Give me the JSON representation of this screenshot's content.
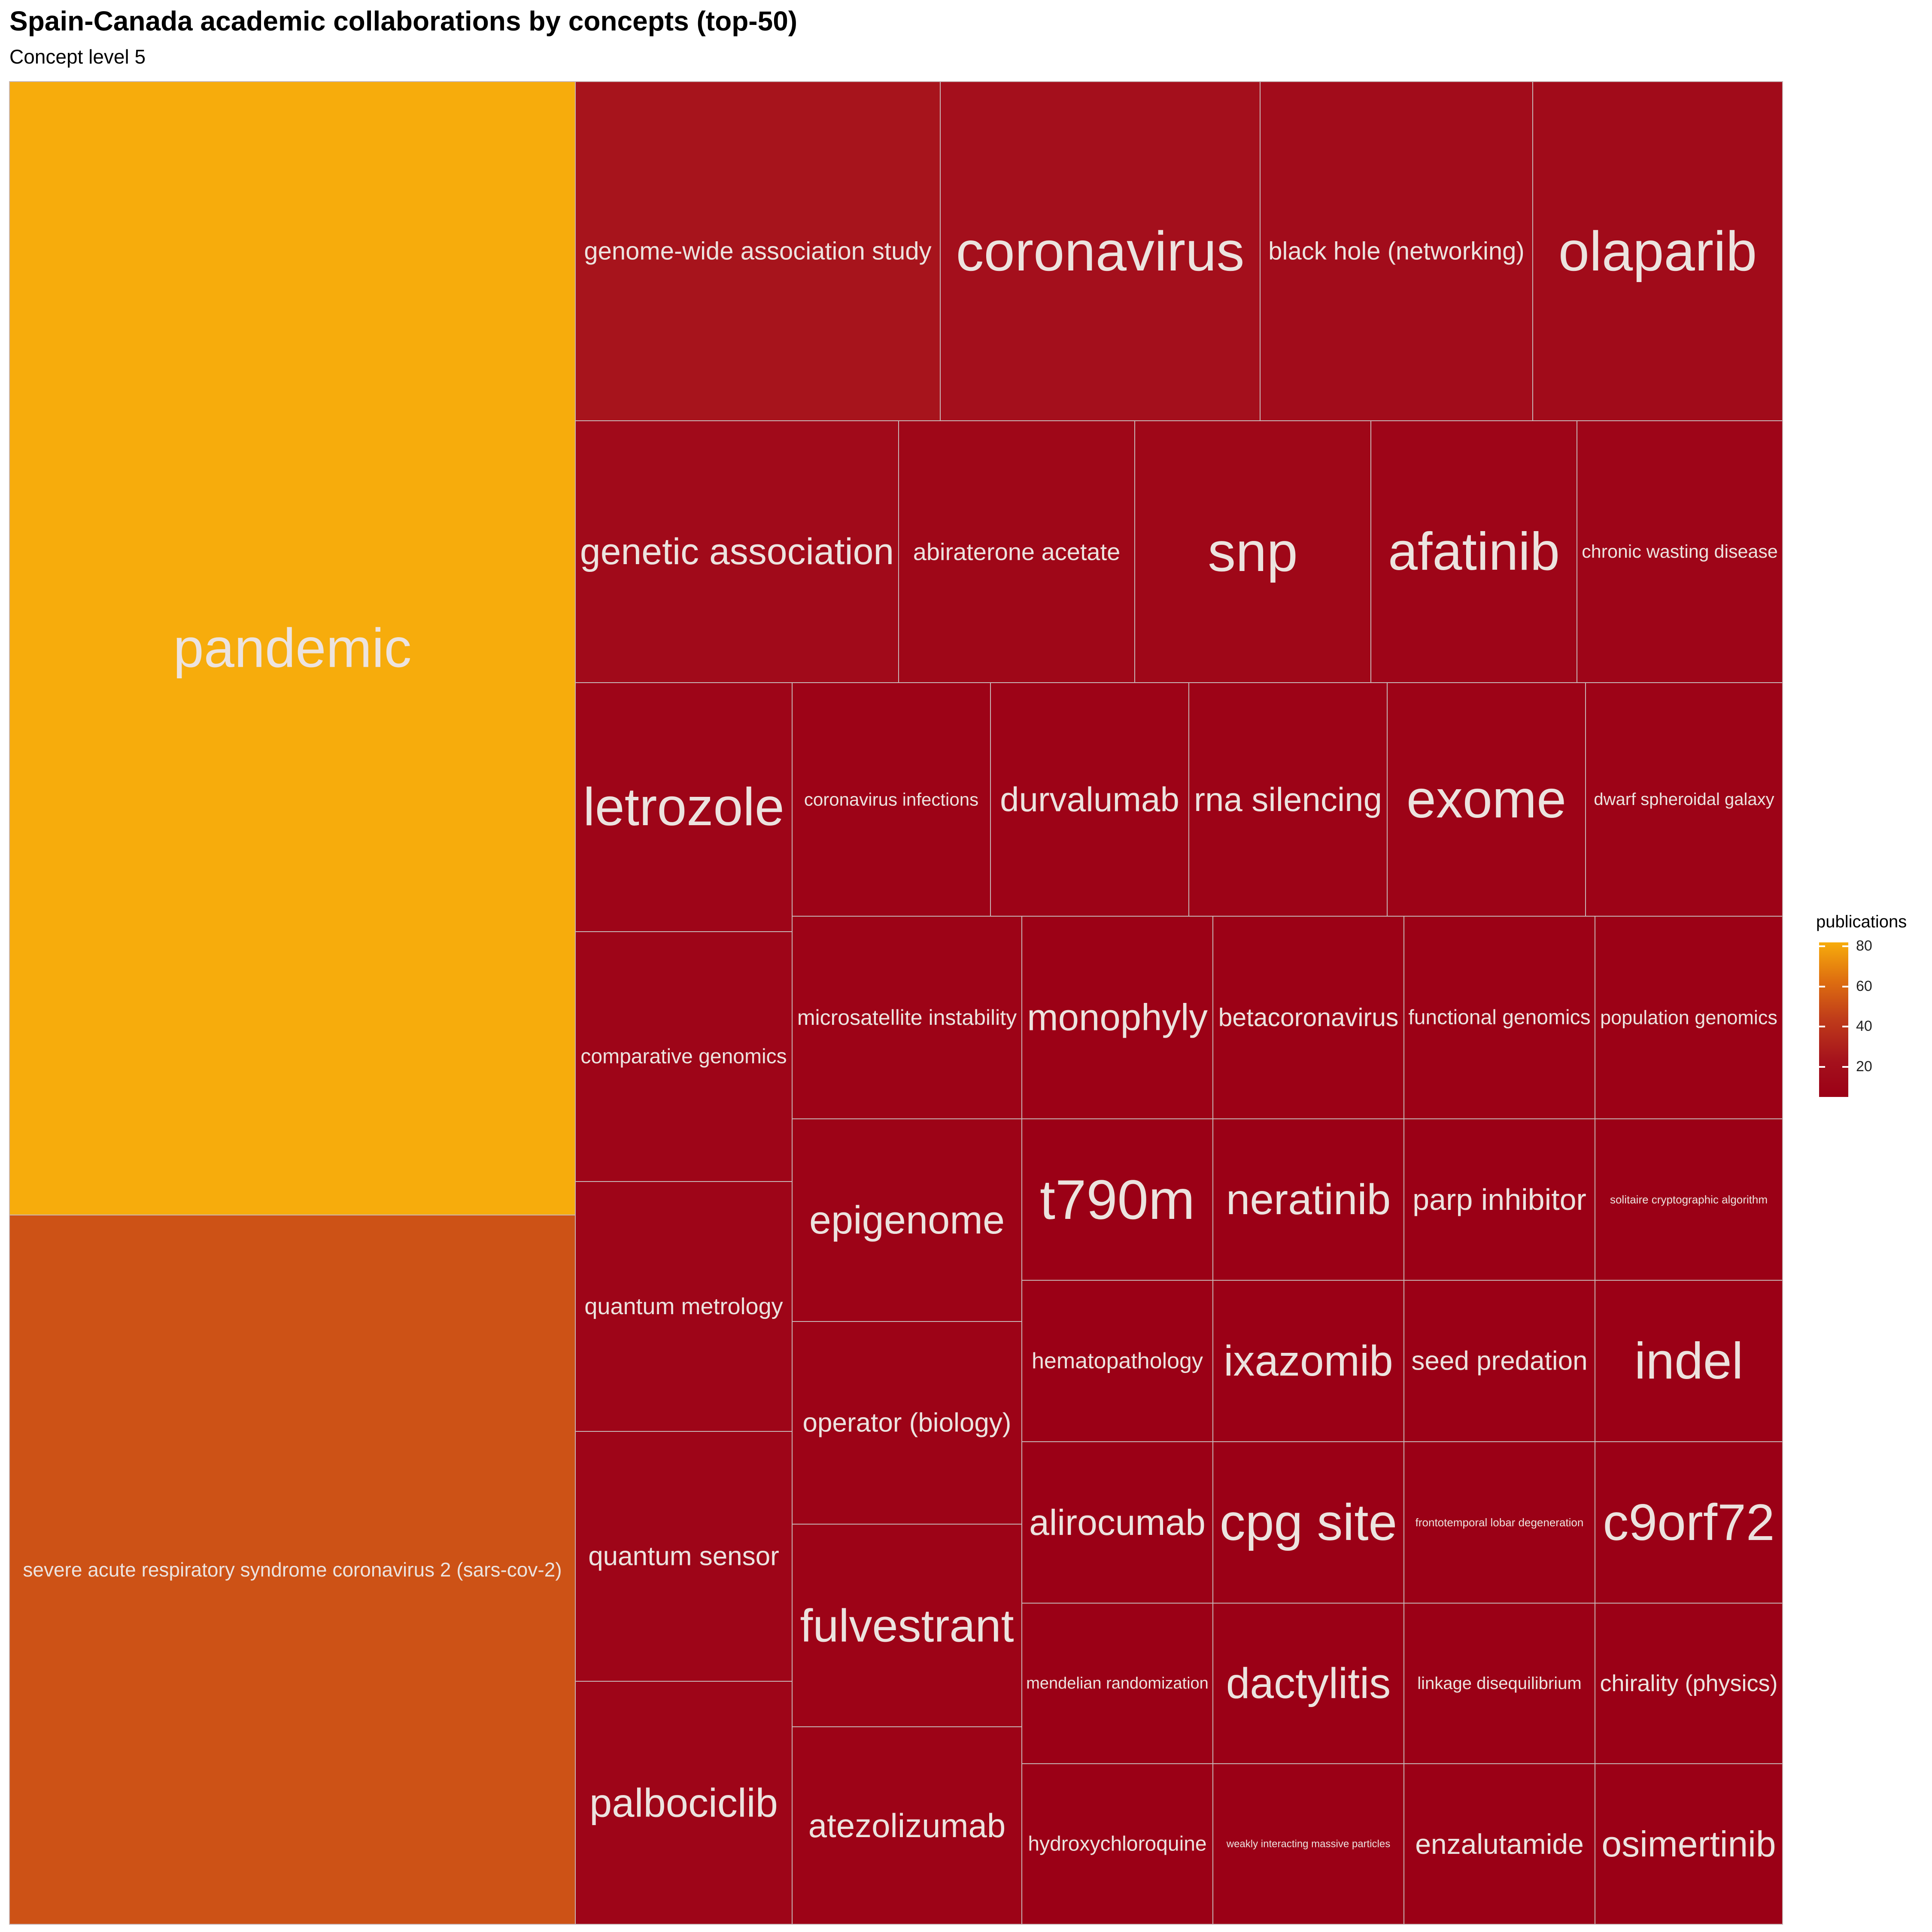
{
  "chart_data": {
    "type": "treemap",
    "title": "Spain-Canada academic collaborations by concepts (top-50)",
    "subtitle": "Concept level 5",
    "legend": {
      "title": "publications",
      "placement": "right",
      "ticks": [
        20,
        40,
        60,
        80
      ],
      "range": [
        5,
        82
      ],
      "colors": [
        "#9b0016",
        "#f7ac0c"
      ]
    },
    "items": [
      {
        "label": "pandemic",
        "value": 82
      },
      {
        "label": "severe acute respiratory syndrome coronavirus 2 (sars-cov-2)",
        "value": 52
      },
      {
        "label": "genome-wide association study",
        "value": 24
      },
      {
        "label": "coronavirus",
        "value": 21
      },
      {
        "label": "black hole (networking)",
        "value": 18
      },
      {
        "label": "olaparib",
        "value": 17
      },
      {
        "label": "genetic association",
        "value": 16
      },
      {
        "label": "abiraterone acetate",
        "value": 12
      },
      {
        "label": "snp",
        "value": 12
      },
      {
        "label": "afatinib",
        "value": 10
      },
      {
        "label": "chronic wasting disease",
        "value": 10
      },
      {
        "label": "letrozole",
        "value": 10
      },
      {
        "label": "coronavirus infections",
        "value": 8
      },
      {
        "label": "durvalumab",
        "value": 8
      },
      {
        "label": "rna silencing",
        "value": 8
      },
      {
        "label": "exome",
        "value": 8
      },
      {
        "label": "dwarf spheroidal galaxy",
        "value": 8
      },
      {
        "label": "comparative genomics",
        "value": 10
      },
      {
        "label": "quantum metrology",
        "value": 10
      },
      {
        "label": "quantum sensor",
        "value": 10
      },
      {
        "label": "palbociclib",
        "value": 10
      },
      {
        "label": "microsatellite instability",
        "value": 8
      },
      {
        "label": "epigenome",
        "value": 8
      },
      {
        "label": "operator (biology)",
        "value": 8
      },
      {
        "label": "fulvestrant",
        "value": 8
      },
      {
        "label": "atezolizumab",
        "value": 8
      },
      {
        "label": "monophyly",
        "value": 6
      },
      {
        "label": "betacoronavirus",
        "value": 6
      },
      {
        "label": "functional genomics",
        "value": 6
      },
      {
        "label": "population genomics",
        "value": 6
      },
      {
        "label": "t790m",
        "value": 5
      },
      {
        "label": "neratinib",
        "value": 5
      },
      {
        "label": "parp inhibitor",
        "value": 5
      },
      {
        "label": "solitaire cryptographic algorithm",
        "value": 5
      },
      {
        "label": "hematopathology",
        "value": 5
      },
      {
        "label": "ixazomib",
        "value": 5
      },
      {
        "label": "seed predation",
        "value": 5
      },
      {
        "label": "indel",
        "value": 5
      },
      {
        "label": "alirocumab",
        "value": 5
      },
      {
        "label": "cpg site",
        "value": 5
      },
      {
        "label": "frontotemporal lobar degeneration",
        "value": 5
      },
      {
        "label": "c9orf72",
        "value": 5
      },
      {
        "label": "mendelian randomization",
        "value": 5
      },
      {
        "label": "dactylitis",
        "value": 5
      },
      {
        "label": "linkage disequilibrium",
        "value": 5
      },
      {
        "label": "chirality (physics)",
        "value": 5
      },
      {
        "label": "hydroxychloroquine",
        "value": 5
      },
      {
        "label": "weakly interacting massive particles",
        "value": 5
      },
      {
        "label": "enzalutamide",
        "value": 5
      },
      {
        "label": "osimertinib",
        "value": 5
      }
    ]
  }
}
